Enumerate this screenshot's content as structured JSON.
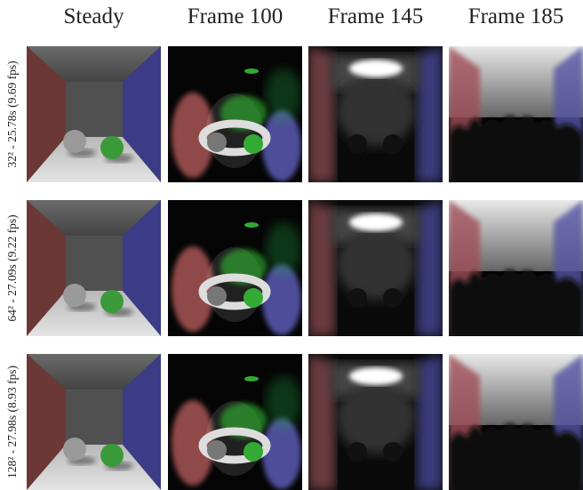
{
  "header": {
    "columns": [
      "Steady",
      "Frame 100",
      "Frame 145",
      "Frame 185"
    ]
  },
  "rows": [
    {
      "label": "32² - 25.78s (9.69 fps)"
    },
    {
      "label": "64² - 27.09s (9.22 fps)"
    },
    {
      "label": "128² - 27.98s (8.93 fps)"
    }
  ]
}
